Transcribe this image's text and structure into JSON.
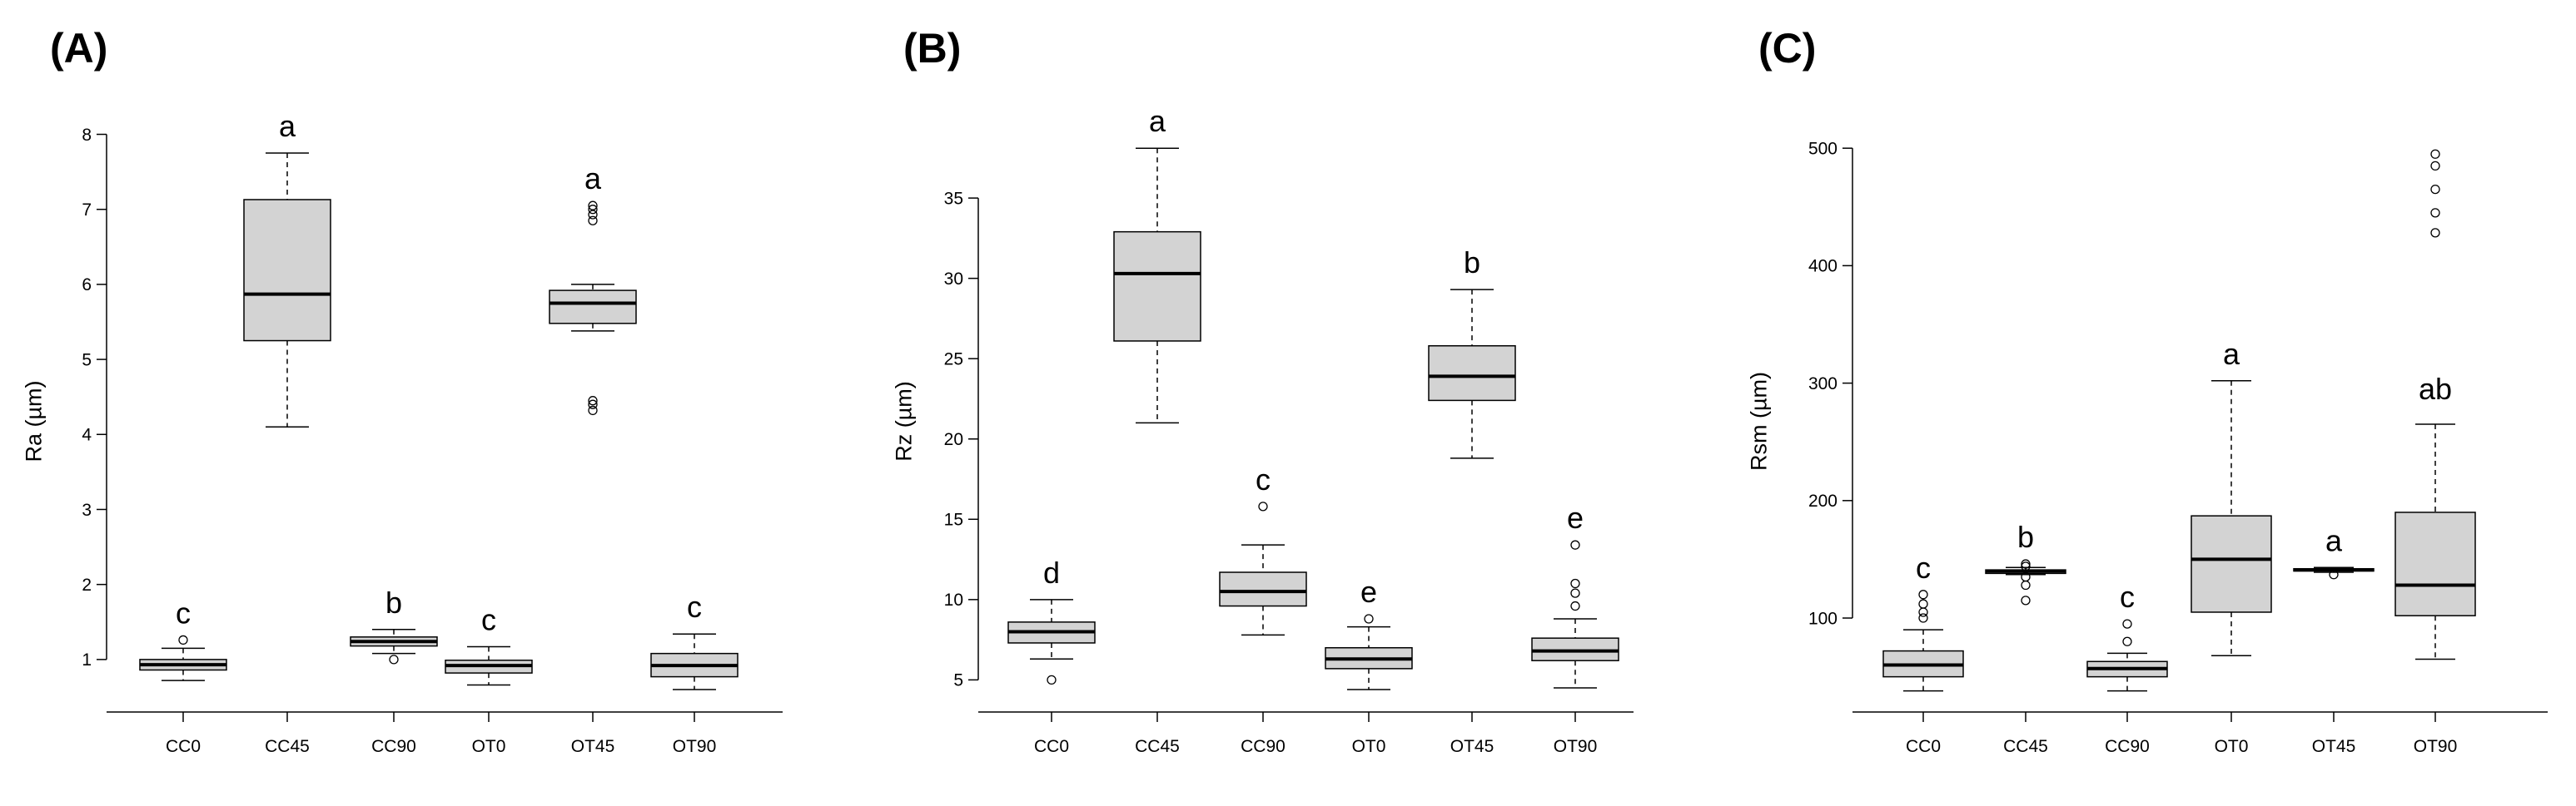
{
  "chart_data": [
    {
      "type": "boxplot",
      "panel_label": "(A)",
      "ylabel": "Ra (µm)",
      "ylim": [
        0.3,
        8.05
      ],
      "yticks": [
        1,
        2,
        3,
        4,
        5,
        6,
        7,
        8
      ],
      "categories": [
        "CC0",
        "CC45",
        "CC90",
        "OT0",
        "OT45",
        "OT90"
      ],
      "boxes": [
        {
          "category": "CC0",
          "min": 0.72,
          "q1": 0.86,
          "median": 0.93,
          "q3": 1.0,
          "max": 1.15,
          "outliers": [
            1.26
          ],
          "label": "c"
        },
        {
          "category": "CC45",
          "min": 4.1,
          "q1": 5.25,
          "median": 5.87,
          "q3": 7.13,
          "max": 7.75,
          "outliers": [],
          "label": "a"
        },
        {
          "category": "CC90",
          "min": 1.08,
          "q1": 1.18,
          "median": 1.24,
          "q3": 1.3,
          "max": 1.4,
          "outliers": [
            1.0
          ],
          "label": "b"
        },
        {
          "category": "OT0",
          "min": 0.66,
          "q1": 0.82,
          "median": 0.92,
          "q3": 0.99,
          "max": 1.17,
          "outliers": [],
          "label": "c"
        },
        {
          "category": "OT45",
          "min": 5.38,
          "q1": 5.48,
          "median": 5.75,
          "q3": 5.92,
          "max": 6.0,
          "outliers": [
            4.32,
            4.4,
            4.45,
            6.85,
            6.93,
            7.0,
            7.05
          ],
          "label": "a"
        },
        {
          "category": "OT90",
          "min": 0.6,
          "q1": 0.77,
          "median": 0.92,
          "q3": 1.08,
          "max": 1.34,
          "outliers": [],
          "label": "c"
        }
      ]
    },
    {
      "type": "boxplot",
      "panel_label": "(B)",
      "ylabel": "Rz (µm)",
      "ylim": [
        3.0,
        39.2
      ],
      "yticks": [
        5,
        10,
        15,
        20,
        25,
        30,
        35
      ],
      "categories": [
        "CC0",
        "CC45",
        "CC90",
        "OT0",
        "OT45",
        "OT90"
      ],
      "boxes": [
        {
          "category": "CC0",
          "min": 6.3,
          "q1": 7.3,
          "median": 8.0,
          "q3": 8.6,
          "max": 10.0,
          "outliers": [
            5.0
          ],
          "label": "d"
        },
        {
          "category": "CC45",
          "min": 21.0,
          "q1": 26.1,
          "median": 30.3,
          "q3": 32.9,
          "max": 38.1,
          "outliers": [],
          "label": "a"
        },
        {
          "category": "CC90",
          "min": 7.8,
          "q1": 9.6,
          "median": 10.5,
          "q3": 11.7,
          "max": 13.4,
          "outliers": [
            15.8
          ],
          "label": "c"
        },
        {
          "category": "OT0",
          "min": 4.4,
          "q1": 5.7,
          "median": 6.3,
          "q3": 7.0,
          "max": 8.3,
          "outliers": [
            8.8
          ],
          "label": "e"
        },
        {
          "category": "OT45",
          "min": 18.8,
          "q1": 22.4,
          "median": 23.9,
          "q3": 25.8,
          "max": 29.3,
          "outliers": [],
          "label": "b"
        },
        {
          "category": "OT90",
          "min": 4.5,
          "q1": 6.2,
          "median": 6.8,
          "q3": 7.6,
          "max": 8.8,
          "outliers": [
            9.6,
            10.4,
            11.0,
            13.4
          ],
          "label": "e"
        }
      ]
    },
    {
      "type": "boxplot",
      "panel_label": "(C)",
      "ylabel": "Rsm (µm)",
      "ylim": [
        20,
        515
      ],
      "yticks": [
        100,
        200,
        300,
        400,
        500
      ],
      "categories": [
        "CC0",
        "CC45",
        "CC90",
        "OT0",
        "OT45",
        "OT90"
      ],
      "boxes": [
        {
          "category": "CC0",
          "min": 38,
          "q1": 50,
          "median": 60,
          "q3": 72,
          "max": 90,
          "outliers": [
            100,
            105,
            112,
            120
          ],
          "label": "c"
        },
        {
          "category": "CC45",
          "min": 137,
          "q1": 138,
          "median": 140,
          "q3": 141,
          "max": 143,
          "outliers": [
            115,
            128,
            135,
            144,
            146
          ],
          "label": "b"
        },
        {
          "category": "CC90",
          "min": 38,
          "q1": 50,
          "median": 57,
          "q3": 63,
          "max": 70,
          "outliers": [
            80,
            95
          ],
          "label": "c"
        },
        {
          "category": "OT0",
          "min": 68,
          "q1": 105,
          "median": 150,
          "q3": 187,
          "max": 302,
          "outliers": [],
          "label": "a"
        },
        {
          "category": "OT45",
          "min": 139,
          "q1": 140,
          "median": 141,
          "q3": 142,
          "max": 143,
          "outliers": [
            137
          ],
          "label": "a"
        },
        {
          "category": "OT90",
          "min": 65,
          "q1": 102,
          "median": 128,
          "q3": 190,
          "max": 265,
          "outliers": [
            428,
            445,
            465,
            485,
            495
          ],
          "label": "ab"
        }
      ]
    }
  ]
}
